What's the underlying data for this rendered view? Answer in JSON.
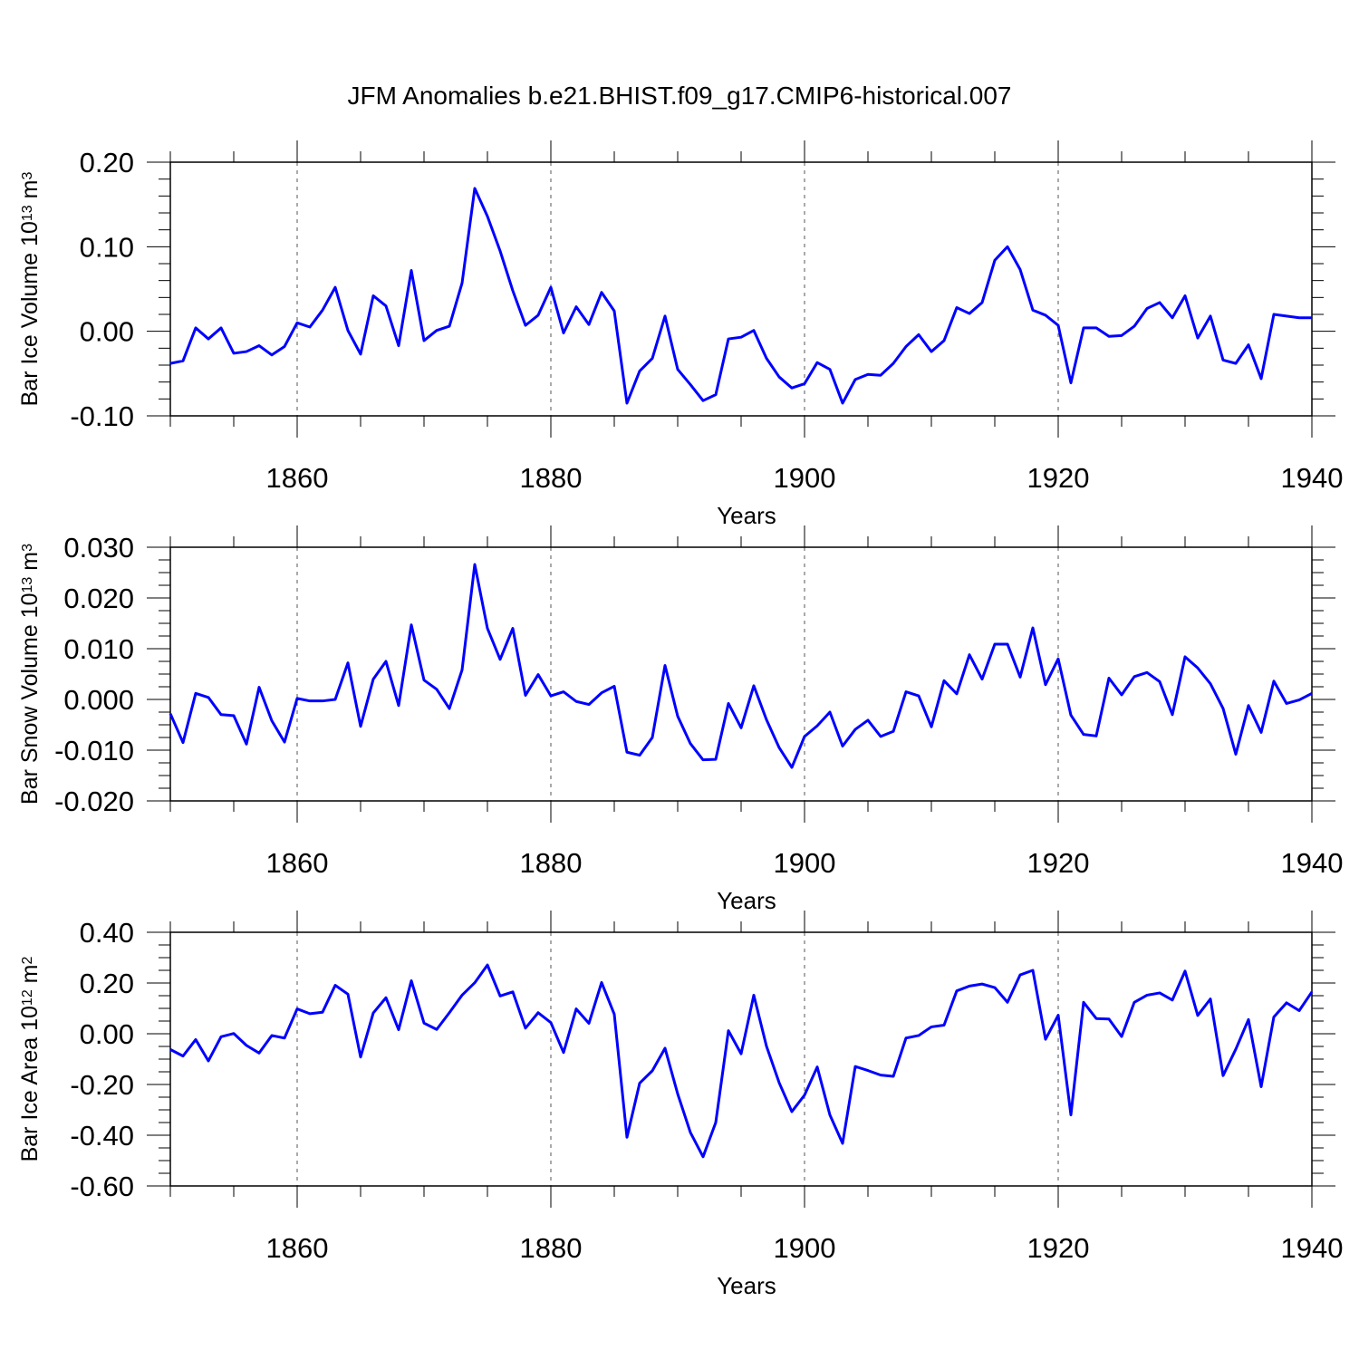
{
  "chart_data": {
    "type": "line",
    "title": "JFM Anomalies b.e21.BHIST.f09_g17.CMIP6-historical.007",
    "series_color": "#0000ff",
    "x": [
      1850,
      1851,
      1852,
      1853,
      1854,
      1855,
      1856,
      1857,
      1858,
      1859,
      1860,
      1861,
      1862,
      1863,
      1864,
      1865,
      1866,
      1867,
      1868,
      1869,
      1870,
      1871,
      1872,
      1873,
      1874,
      1875,
      1876,
      1877,
      1878,
      1879,
      1880,
      1881,
      1882,
      1883,
      1884,
      1885,
      1886,
      1887,
      1888,
      1889,
      1890,
      1891,
      1892,
      1893,
      1894,
      1895,
      1896,
      1897,
      1898,
      1899,
      1900,
      1901,
      1902,
      1903,
      1904,
      1905,
      1906,
      1907,
      1908,
      1909,
      1910,
      1911,
      1912,
      1913,
      1914,
      1915,
      1916,
      1917,
      1918,
      1919,
      1920,
      1921,
      1922,
      1923,
      1924,
      1925,
      1926,
      1927,
      1928,
      1929,
      1930,
      1931,
      1932,
      1933,
      1934,
      1935,
      1936,
      1937,
      1938,
      1939,
      1940
    ],
    "xlim": [
      1850,
      1940
    ],
    "xticks": [
      1860,
      1880,
      1900,
      1920,
      1940
    ],
    "xlabel": "Years",
    "panels": [
      {
        "name": "ice-volume",
        "ylabel_base": "Bar Ice Volume 10",
        "ylabel_exp1": "13",
        "ylabel_unit": " m",
        "ylabel_exp2": "3",
        "ylim": [
          -0.1,
          0.2
        ],
        "yticks": [
          "0.20",
          "0.10",
          "0.00",
          "-0.10"
        ],
        "values": [
          -0.038,
          -0.035,
          0.004,
          -0.009,
          0.004,
          -0.026,
          -0.024,
          -0.017,
          -0.028,
          -0.018,
          0.01,
          0.005,
          0.025,
          0.052,
          0.001,
          -0.027,
          0.042,
          0.03,
          -0.017,
          0.072,
          -0.011,
          0.001,
          0.006,
          0.057,
          0.169,
          0.136,
          0.095,
          0.048,
          0.007,
          0.019,
          0.052,
          -0.002,
          0.029,
          0.008,
          0.046,
          0.024,
          -0.085,
          -0.047,
          -0.032,
          0.018,
          -0.045,
          -0.063,
          -0.082,
          -0.075,
          -0.009,
          -0.007,
          0.001,
          -0.032,
          -0.054,
          -0.067,
          -0.062,
          -0.037,
          -0.045,
          -0.085,
          -0.057,
          -0.051,
          -0.052,
          -0.038,
          -0.018,
          -0.004,
          -0.024,
          -0.011,
          0.028,
          0.021,
          0.034,
          0.084,
          0.1,
          0.073,
          0.025,
          0.019,
          0.007,
          -0.061,
          0.004,
          0.004,
          -0.006,
          -0.005,
          0.006,
          0.027,
          0.034,
          0.016,
          0.042,
          -0.008,
          0.018,
          -0.034,
          -0.038,
          -0.016,
          -0.056,
          0.02,
          0.018,
          0.016,
          0.016
        ]
      },
      {
        "name": "snow-volume",
        "ylabel_base": "Bar Snow Volume 10",
        "ylabel_exp1": "13",
        "ylabel_unit": " m",
        "ylabel_exp2": "3",
        "ylim": [
          -0.02,
          0.03
        ],
        "yticks": [
          "0.030",
          "0.020",
          "0.010",
          "0.000",
          "-0.010",
          "-0.020"
        ],
        "values": [
          -0.0028,
          -0.0085,
          0.0012,
          0.0004,
          -0.003,
          -0.0032,
          -0.0088,
          0.0024,
          -0.0042,
          -0.0084,
          0.0002,
          -0.0003,
          -0.0003,
          0.0,
          0.0072,
          -0.0053,
          0.004,
          0.0075,
          -0.0012,
          0.0147,
          0.0038,
          0.002,
          -0.0018,
          0.0058,
          0.0266,
          0.014,
          0.0079,
          0.014,
          0.0008,
          0.0049,
          0.0007,
          0.0015,
          -0.0004,
          -0.001,
          0.0013,
          0.0026,
          -0.0104,
          -0.011,
          -0.0075,
          0.0067,
          -0.0033,
          -0.0087,
          -0.0119,
          -0.0118,
          -0.0008,
          -0.0056,
          0.0027,
          -0.004,
          -0.0095,
          -0.0134,
          -0.0073,
          -0.0052,
          -0.0025,
          -0.0092,
          -0.0059,
          -0.0041,
          -0.0073,
          -0.0063,
          0.0015,
          0.0007,
          -0.0054,
          0.0037,
          0.0011,
          0.0088,
          0.004,
          0.0109,
          0.0109,
          0.0044,
          0.0141,
          0.0029,
          0.008,
          -0.0031,
          -0.0069,
          -0.0072,
          0.0042,
          0.0009,
          0.0045,
          0.0053,
          0.0035,
          -0.003,
          0.0084,
          0.0062,
          0.0031,
          -0.0018,
          -0.0108,
          -0.0012,
          -0.0065,
          0.0036,
          -0.0008,
          -0.0001,
          0.0012
        ]
      },
      {
        "name": "ice-area",
        "ylabel_base": "Bar Ice Area 10",
        "ylabel_exp1": "12",
        "ylabel_unit": " m",
        "ylabel_exp2": "2",
        "ylim": [
          -0.6,
          0.4
        ],
        "yticks": [
          "0.40",
          "0.20",
          "0.00",
          "-0.20",
          "-0.40",
          "-0.60"
        ],
        "values": [
          -0.062,
          -0.088,
          -0.023,
          -0.107,
          -0.012,
          0.001,
          -0.046,
          -0.076,
          -0.007,
          -0.017,
          0.098,
          0.079,
          0.085,
          0.191,
          0.156,
          -0.092,
          0.082,
          0.142,
          0.016,
          0.209,
          0.042,
          0.017,
          0.083,
          0.152,
          0.201,
          0.271,
          0.149,
          0.165,
          0.022,
          0.083,
          0.044,
          -0.074,
          0.098,
          0.041,
          0.202,
          0.077,
          -0.408,
          -0.195,
          -0.146,
          -0.057,
          -0.237,
          -0.389,
          -0.485,
          -0.35,
          0.012,
          -0.079,
          0.152,
          -0.049,
          -0.193,
          -0.307,
          -0.242,
          -0.131,
          -0.32,
          -0.432,
          -0.129,
          -0.145,
          -0.163,
          -0.168,
          -0.017,
          -0.007,
          0.027,
          0.034,
          0.169,
          0.188,
          0.196,
          0.182,
          0.124,
          0.232,
          0.25,
          -0.022,
          0.073,
          -0.32,
          0.124,
          0.06,
          0.058,
          -0.011,
          0.124,
          0.152,
          0.161,
          0.133,
          0.247,
          0.072,
          0.137,
          -0.165,
          -0.061,
          0.056,
          -0.209,
          0.066,
          0.122,
          0.091,
          0.165
        ]
      }
    ]
  }
}
